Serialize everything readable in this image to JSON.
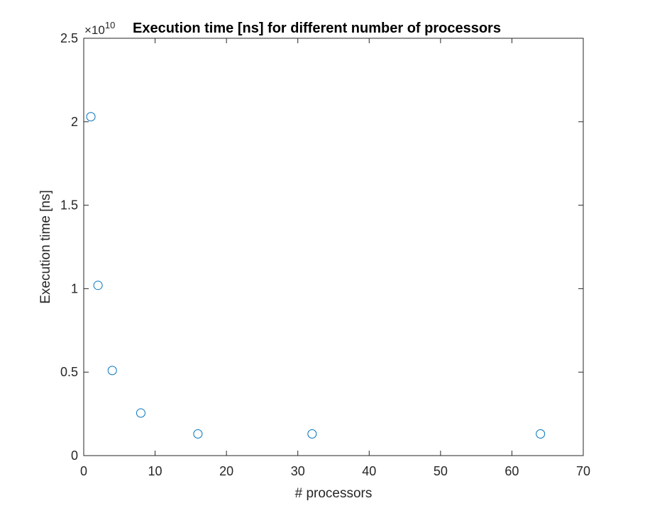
{
  "chart_data": {
    "type": "scatter",
    "title": "Execution time [ns] for different number of processors",
    "xlabel": "# processors",
    "ylabel": "Execution time [ns]",
    "xlim": [
      0,
      70
    ],
    "ylim": [
      0,
      2.5
    ],
    "y_multiplier": "×10",
    "y_multiplier_exponent": "10",
    "xticks": [
      0,
      10,
      20,
      30,
      40,
      50,
      60,
      70
    ],
    "xtick_labels": [
      "0",
      "10",
      "20",
      "30",
      "40",
      "50",
      "60",
      "70"
    ],
    "yticks": [
      0,
      0.5,
      1,
      1.5,
      2,
      2.5
    ],
    "ytick_labels": [
      "0",
      "0.5",
      "1",
      "1.5",
      "2",
      "2.5"
    ],
    "series": [
      {
        "name": "Execution time",
        "marker": "circle-open",
        "color": "#0072BD",
        "x": [
          1,
          2,
          4,
          8,
          16,
          32,
          64
        ],
        "y": [
          2.03,
          1.02,
          0.51,
          0.255,
          0.13,
          0.13,
          0.13
        ]
      }
    ],
    "grid": false,
    "legend": "none"
  }
}
